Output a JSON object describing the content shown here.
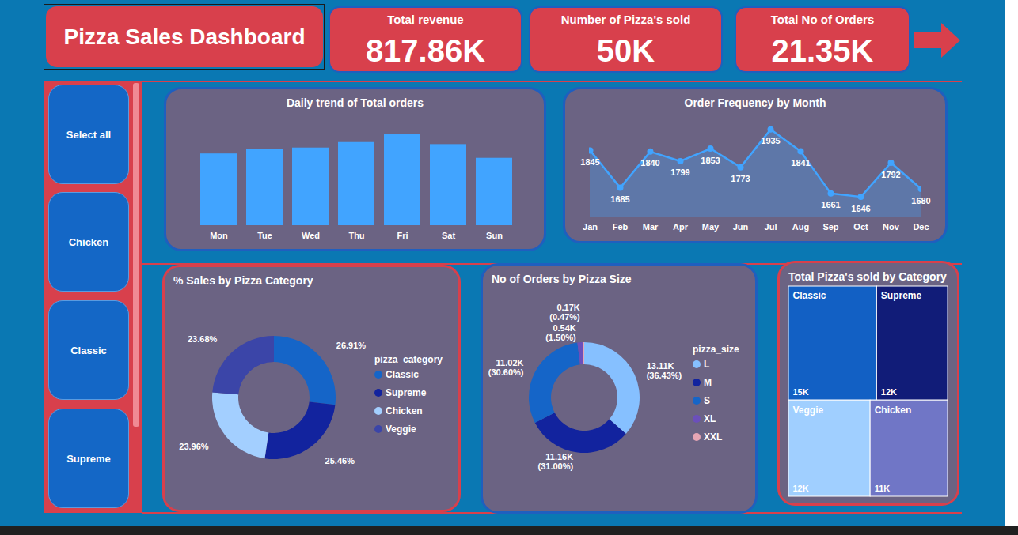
{
  "header": {
    "title": "Pizza Sales Dashboard"
  },
  "kpis": [
    {
      "label": "Total revenue",
      "value": "817.86K"
    },
    {
      "label": "Number of Pizza's sold",
      "value": "50K"
    },
    {
      "label": "Total No of Orders",
      "value": "21.35K"
    }
  ],
  "slicer": {
    "items": [
      "Select all",
      "Chicken",
      "Classic",
      "Supreme"
    ]
  },
  "chart_data": [
    {
      "type": "bar",
      "title": "Daily trend of Total orders",
      "categories": [
        "Mon",
        "Tue",
        "Wed",
        "Thu",
        "Fri",
        "Sat",
        "Sun"
      ],
      "values": [
        2794,
        2973,
        3024,
        3239,
        3538,
        3158,
        2624
      ],
      "color": "#41A4FF",
      "ylim": [
        0,
        4000
      ],
      "tick_labels": "x"
    },
    {
      "type": "area",
      "title": "Order Frequency by Month",
      "categories": [
        "Jan",
        "Feb",
        "Mar",
        "Apr",
        "May",
        "Jun",
        "Jul",
        "Aug",
        "Sep",
        "Oct",
        "Nov",
        "Dec"
      ],
      "values": [
        1845,
        1685,
        1840,
        1799,
        1853,
        1773,
        1935,
        1841,
        1661,
        1646,
        1792,
        1680
      ],
      "color": "#41A4FF",
      "ylim": [
        1560,
        1970
      ],
      "marker": "circle",
      "data_labels": true,
      "tick_labels": "x"
    },
    {
      "type": "donut",
      "title": "% Sales by Pizza Category",
      "categories": [
        "Classic",
        "Supreme",
        "Chicken",
        "Veggie"
      ],
      "values": [
        26.91,
        25.46,
        23.96,
        23.68
      ],
      "value_labels": [
        "26.91%",
        "25.46%",
        "23.96%",
        "23.68%"
      ],
      "colors": [
        "#1565C8",
        "#12239E",
        "#A3CFFF",
        "#3B45A8"
      ],
      "data_labels": true,
      "legend": "right",
      "legend_title": "pizza_category"
    },
    {
      "type": "donut",
      "title": "No of Orders by Pizza Size",
      "categories": [
        "L",
        "M",
        "S",
        "XL",
        "XXL"
      ],
      "values": [
        13110,
        11160,
        11016,
        540,
        169
      ],
      "value_labels": [
        "13.11K (36.43%)",
        "11.16K (31.00%)",
        "11.02K (30.60%)",
        "0.54K (1.50%)",
        "0.17K (0.47%)"
      ],
      "colors": [
        "#86C0FF",
        "#12239E",
        "#1565C8",
        "#6B4FBB",
        "#E6A5B4"
      ],
      "data_labels": true,
      "legend": "right",
      "legend_title": "pizza_size"
    },
    {
      "type": "treemap",
      "title": "Total Pizza's sold by Category",
      "categories": [
        "Classic",
        "Supreme",
        "Veggie",
        "Chicken"
      ],
      "values": [
        14888,
        11987,
        11649,
        11050
      ],
      "value_labels": [
        "15K",
        "12K",
        "12K",
        "11K"
      ],
      "colors": [
        "#1260C4",
        "#111C78",
        "#A0CFFF",
        "#7076C6"
      ],
      "data_labels": true
    }
  ]
}
